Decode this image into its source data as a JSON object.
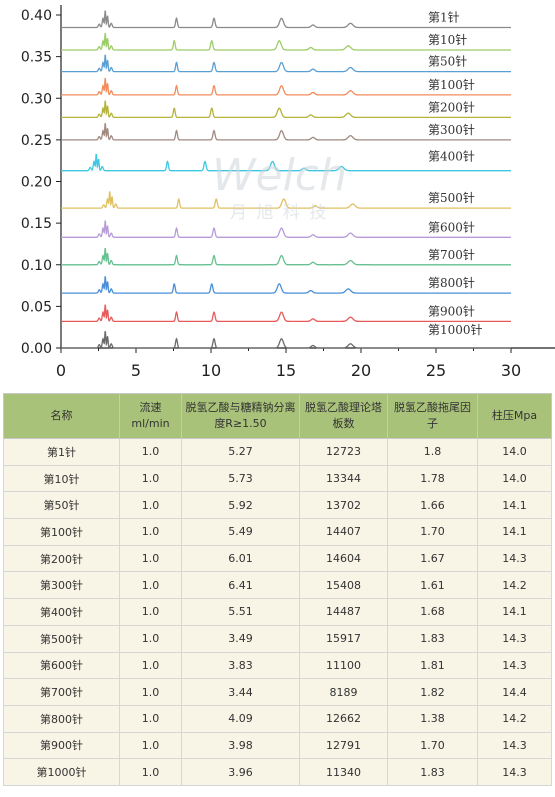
{
  "watermark": {
    "brand": "Welch",
    "cn": "月 旭 科 技"
  },
  "chart_data": {
    "type": "line",
    "x_ticks": [
      "0",
      "5",
      "10",
      "15",
      "20",
      "25",
      "30"
    ],
    "y_ticks": [
      "0.00",
      "0.05",
      "0.10",
      "0.15",
      "0.20",
      "0.25",
      "0.30",
      "0.35",
      "0.40"
    ],
    "xlim": [
      0,
      30
    ],
    "ylim": [
      0,
      0.4
    ],
    "series": [
      {
        "name": "第1针",
        "baseline": 0.385,
        "color": "#8a8a8a"
      },
      {
        "name": "第10针",
        "baseline": 0.358,
        "color": "#9ccc65"
      },
      {
        "name": "第50针",
        "baseline": 0.332,
        "color": "#5a9fd4"
      },
      {
        "name": "第100针",
        "baseline": 0.304,
        "color": "#f28c5a"
      },
      {
        "name": "第200针",
        "baseline": 0.277,
        "color": "#b5b33a"
      },
      {
        "name": "第300针",
        "baseline": 0.25,
        "color": "#a08a80"
      },
      {
        "name": "第400针",
        "baseline": 0.213,
        "color": "#3ec7e0"
      },
      {
        "name": "第500针",
        "baseline": 0.168,
        "color": "#e0c060"
      },
      {
        "name": "第600针",
        "baseline": 0.133,
        "color": "#b79bd9"
      },
      {
        "name": "第700针",
        "baseline": 0.1,
        "color": "#66c090"
      },
      {
        "name": "第800针",
        "baseline": 0.066,
        "color": "#4a8fd8"
      },
      {
        "name": "第900针",
        "baseline": 0.032,
        "color": "#e85a5a"
      },
      {
        "name": "第1000针",
        "baseline": 0.0,
        "color": "#6a6a6a"
      }
    ]
  },
  "table": {
    "headers": [
      "名称",
      "流速ml/min",
      "脱氢乙酸与糖精钠分离度R≥1.50",
      "脱氢乙酸理论塔板数",
      "脱氢乙酸拖尾因子",
      "柱压Mpa"
    ],
    "rows": [
      [
        "第1针",
        "1.0",
        "5.27",
        "12723",
        "1.8",
        "14.0"
      ],
      [
        "第10针",
        "1.0",
        "5.73",
        "13344",
        "1.78",
        "14.0"
      ],
      [
        "第50针",
        "1.0",
        "5.92",
        "13702",
        "1.66",
        "14.1"
      ],
      [
        "第100针",
        "1.0",
        "5.49",
        "14407",
        "1.70",
        "14.1"
      ],
      [
        "第200针",
        "1.0",
        "6.01",
        "14604",
        "1.67",
        "14.3"
      ],
      [
        "第300针",
        "1.0",
        "6.41",
        "15408",
        "1.61",
        "14.2"
      ],
      [
        "第400针",
        "1.0",
        "5.51",
        "14487",
        "1.68",
        "14.1"
      ],
      [
        "第500针",
        "1.0",
        "3.49",
        "15917",
        "1.83",
        "14.3"
      ],
      [
        "第600针",
        "1.0",
        "3.83",
        "11100",
        "1.81",
        "14.3"
      ],
      [
        "第700针",
        "1.0",
        "3.44",
        "8189",
        "1.82",
        "14.4"
      ],
      [
        "第800针",
        "1.0",
        "4.09",
        "12662",
        "1.38",
        "14.2"
      ],
      [
        "第900针",
        "1.0",
        "3.98",
        "12791",
        "1.70",
        "14.3"
      ],
      [
        "第1000针",
        "1.0",
        "3.96",
        "11340",
        "1.83",
        "14.3"
      ]
    ]
  }
}
